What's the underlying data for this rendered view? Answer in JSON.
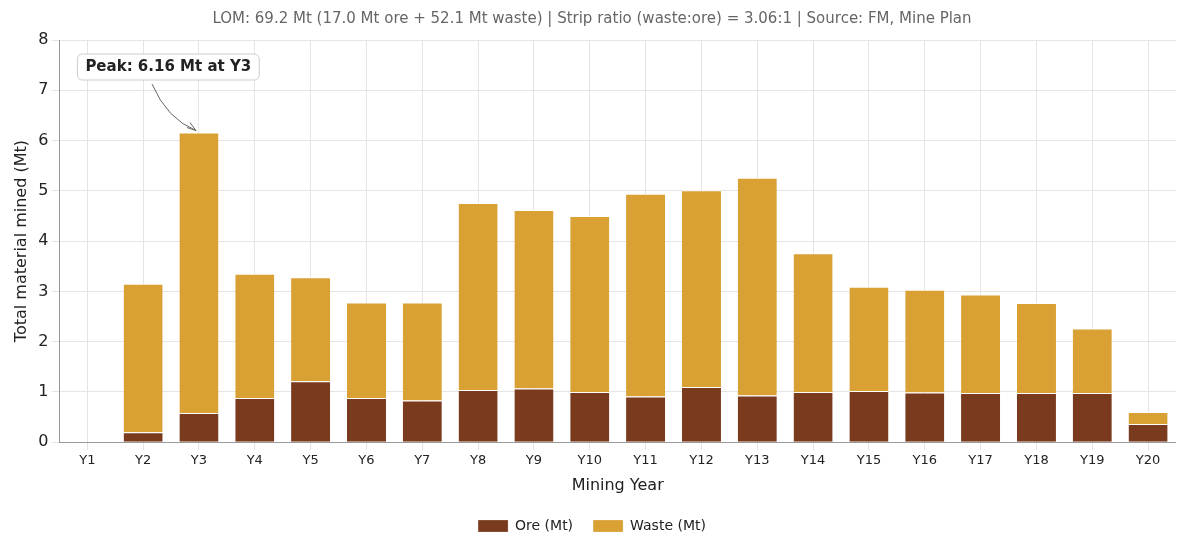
{
  "chart_data": {
    "type": "bar",
    "title": "LOM: 69.2 Mt (17.0 Mt ore + 52.1 Mt waste) | Strip ratio (waste:ore) = 3.06:1 | Source: FM, Mine Plan",
    "xlabel": "Mining Year",
    "ylabel": "Total material mined (Mt)",
    "categories": [
      "Y1",
      "Y2",
      "Y3",
      "Y4",
      "Y5",
      "Y6",
      "Y7",
      "Y8",
      "Y9",
      "Y10",
      "Y11",
      "Y12",
      "Y13",
      "Y14",
      "Y15",
      "Y16",
      "Y17",
      "Y18",
      "Y19",
      "Y20"
    ],
    "stacked": true,
    "series": [
      {
        "name": "Ore (Mt)",
        "color": "#7a3a1e",
        "values": [
          0,
          0.2,
          0.58,
          0.88,
          1.21,
          0.88,
          0.83,
          1.04,
          1.07,
          1.0,
          0.91,
          1.1,
          0.93,
          1.0,
          1.02,
          0.99,
          0.98,
          0.98,
          0.98,
          0.36
        ]
      },
      {
        "name": "Waste (Mt)",
        "color": "#d9a033",
        "values": [
          0,
          2.95,
          5.58,
          2.47,
          2.07,
          1.9,
          1.95,
          3.72,
          3.55,
          3.5,
          4.03,
          3.91,
          4.33,
          2.76,
          2.07,
          2.04,
          1.96,
          1.79,
          1.28,
          0.24
        ]
      }
    ],
    "ylim": [
      0,
      8
    ],
    "yticks": [
      0,
      1,
      2,
      3,
      4,
      5,
      6,
      7,
      8
    ],
    "grid": true,
    "legend": "bottom",
    "annotations": [
      {
        "text": "Peak: 6.16 Mt at Y3",
        "x": "Y3",
        "y": 6.16
      }
    ]
  }
}
